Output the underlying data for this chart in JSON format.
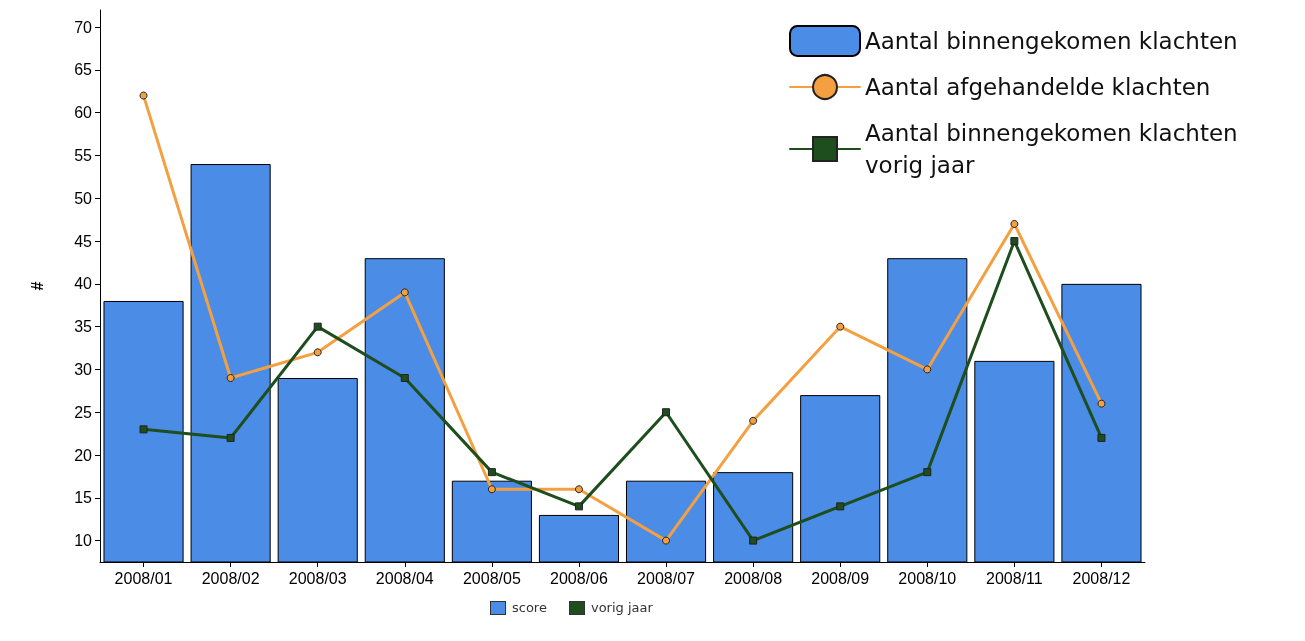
{
  "chart_data": {
    "type": "bar",
    "ylabel": "#",
    "categories": [
      "2008/01",
      "2008/02",
      "2008/03",
      "2008/04",
      "2008/05",
      "2008/06",
      "2008/07",
      "2008/08",
      "2008/09",
      "2008/10",
      "2008/11",
      "2008/12"
    ],
    "series": [
      {
        "name": "Aantal binnengekomen klachten",
        "color": "#4a8ce6",
        "values": [
          38,
          54,
          29,
          43,
          17,
          13,
          17,
          18,
          27,
          43,
          31,
          40
        ]
      },
      {
        "name": "Aantal afgehandelde klachten",
        "type": "line",
        "color": "#f5a040",
        "marker": "circle",
        "values": [
          62,
          29,
          32,
          39,
          16,
          16,
          10,
          24,
          35,
          30,
          47,
          26
        ]
      },
      {
        "name": "Aantal binnengekomen klachten vorig jaar",
        "type": "line",
        "color": "#1e4d1e",
        "marker": "square",
        "values": [
          23,
          22,
          35,
          29,
          18,
          14,
          25,
          10,
          14,
          18,
          45,
          22
        ]
      }
    ],
    "ylim": [
      7.5,
      72
    ],
    "yticks": [
      10,
      15,
      20,
      25,
      30,
      35,
      40,
      45,
      50,
      55,
      60,
      65,
      70
    ],
    "grid": false,
    "legend": "top right",
    "line_style": "solid",
    "annotations": [
      "score",
      "vorig jaar"
    ]
  }
}
